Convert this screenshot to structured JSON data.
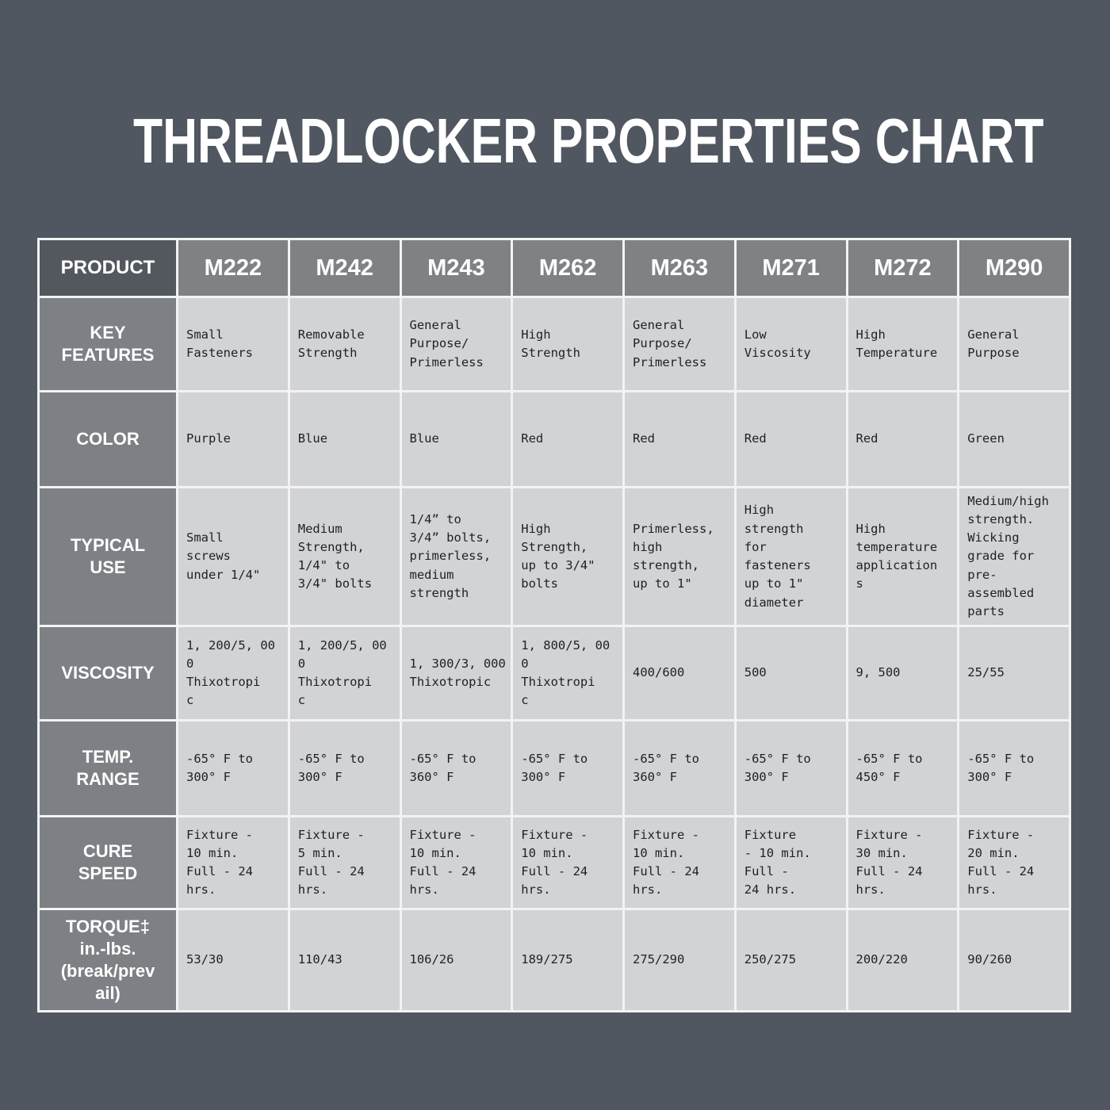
{
  "page": {
    "title": "THREADLOCKER PROPERTIES CHART",
    "background_color": "#515760",
    "gridline_color": "#f3f3f4",
    "corner_cell_color": "#53585f",
    "header_cell_color": "#7f8285",
    "label_cell_color": "#7d8084",
    "body_cell_color": "#d2d3d5"
  },
  "table": {
    "header": {
      "label": "PRODUCT",
      "products": [
        "M222",
        "M242",
        "M243",
        "M262",
        "M263",
        "M271",
        "M272",
        "M290"
      ]
    },
    "rows": [
      {
        "id": "key-features",
        "label": "KEY\nFEATURES",
        "cells": [
          "Small\nFasteners",
          "Removable\nStrength",
          "General\nPurpose/\nPrimerless",
          "High\nStrength",
          "General\nPurpose/\nPrimerless",
          "Low\nViscosity",
          "High\nTemperature",
          "General\nPurpose"
        ]
      },
      {
        "id": "color",
        "label": "COLOR",
        "cells": [
          "Purple",
          "Blue",
          "Blue",
          "Red",
          "Red",
          "Red",
          "Red",
          "Green"
        ]
      },
      {
        "id": "typical-use",
        "label": "TYPICAL\nUSE",
        "cells": [
          "Small\nscrews\nunder 1/4\"",
          "Medium\nStrength,\n1/4\" to\n3/4\" bolts",
          "1/4” to\n3/4” bolts,\nprimerless,\nmedium\nstrength",
          "High\nStrength,\nup to 3/4\"\nbolts",
          "Primerless,\nhigh\nstrength,\nup to 1\"",
          "High\nstrength\nfor\nfasteners\nup to 1\"\ndiameter",
          "High\ntemperature\napplication\ns",
          "Medium/high\nstrength.\nWicking\ngrade for\npre-\nassembled\nparts"
        ]
      },
      {
        "id": "viscosity",
        "label": "VISCOSITY",
        "cells": [
          "1, 200/5, 00\n0\nThixotropi\nc",
          "1, 200/5, 00\n0\nThixotropi\nc",
          "1, 300/3, 000\nThixotropic",
          "1, 800/5, 00\n0\nThixotropi\nc",
          "400/600",
          "500",
          "9, 500",
          "25/55"
        ]
      },
      {
        "id": "temp-range",
        "label": "TEMP.\nRANGE",
        "cells": [
          "-65° F to\n300° F",
          "-65° F to\n300° F",
          "-65° F to\n360° F",
          "-65° F to\n300° F",
          "-65° F to\n360° F",
          "-65° F to\n300° F",
          "-65° F to\n450° F",
          "-65° F to\n300° F"
        ]
      },
      {
        "id": "cure-speed",
        "label": "CURE\nSPEED",
        "cells": [
          "Fixture -\n10 min.\nFull - 24\nhrs.",
          "Fixture -\n5 min.\nFull - 24\nhrs.",
          "Fixture -\n10 min.\nFull - 24\nhrs.",
          "Fixture -\n10 min.\nFull - 24\nhrs.",
          "Fixture -\n10 min.\nFull - 24\nhrs.",
          "Fixture\n- 10 min.\nFull -\n24 hrs.",
          "Fixture -\n30 min.\nFull - 24\nhrs.",
          "Fixture -\n20 min.\nFull - 24\nhrs."
        ]
      },
      {
        "id": "torque",
        "label": "TORQUE‡\nin.-lbs.\n(break/prev\nail)",
        "cells": [
          "53/30",
          "110/43",
          "106/26",
          "189/275",
          "275/290",
          "250/275",
          "200/220",
          "90/260"
        ]
      }
    ]
  },
  "chart_data": {
    "type": "table",
    "title": "THREADLOCKER PROPERTIES CHART",
    "columns": [
      "PRODUCT",
      "M222",
      "M242",
      "M243",
      "M262",
      "M263",
      "M271",
      "M272",
      "M290"
    ],
    "rows": [
      {
        "label": "KEY FEATURES",
        "values": [
          "Small Fasteners",
          "Removable Strength",
          "General Purpose/Primerless",
          "High Strength",
          "General Purpose/Primerless",
          "Low Viscosity",
          "High Temperature",
          "General Purpose"
        ]
      },
      {
        "label": "COLOR",
        "values": [
          "Purple",
          "Blue",
          "Blue",
          "Red",
          "Red",
          "Red",
          "Red",
          "Green"
        ]
      },
      {
        "label": "TYPICAL USE",
        "values": [
          "Small screws under 1/4\"",
          "Medium Strength, 1/4\" to 3/4\" bolts",
          "1/4” to 3/4” bolts, primerless, medium strength",
          "High Strength, up to 3/4\" bolts",
          "Primerless, high strength, up to 1\"",
          "High strength for fasteners up to 1\" diameter",
          "High temperature applications",
          "Medium/high strength. Wicking grade for pre-assembled parts"
        ]
      },
      {
        "label": "VISCOSITY",
        "values": [
          "1,200/5,000 Thixotropic",
          "1,200/5,000 Thixotropic",
          "1,300/3,000 Thixotropic",
          "1,800/5,000 Thixotropic",
          "400/600",
          "500",
          "9,500",
          "25/55"
        ]
      },
      {
        "label": "TEMP. RANGE",
        "values": [
          "-65° F to 300° F",
          "-65° F to 300° F",
          "-65° F to 360° F",
          "-65° F to 300° F",
          "-65° F to 360° F",
          "-65° F to 300° F",
          "-65° F to 450° F",
          "-65° F to 300° F"
        ]
      },
      {
        "label": "CURE SPEED",
        "values": [
          "Fixture - 10 min. Full - 24 hrs.",
          "Fixture - 5 min. Full - 24 hrs.",
          "Fixture - 10 min. Full - 24 hrs.",
          "Fixture - 10 min. Full - 24 hrs.",
          "Fixture - 10 min. Full - 24 hrs.",
          "Fixture - 10 min. Full - 24 hrs.",
          "Fixture - 30 min. Full - 24 hrs.",
          "Fixture - 20 min. Full - 24 hrs."
        ]
      },
      {
        "label": "TORQUE‡ in.-lbs. (break/prevail)",
        "values": [
          "53/30",
          "110/43",
          "106/26",
          "189/275",
          "275/290",
          "250/275",
          "200/220",
          "90/260"
        ]
      }
    ]
  }
}
